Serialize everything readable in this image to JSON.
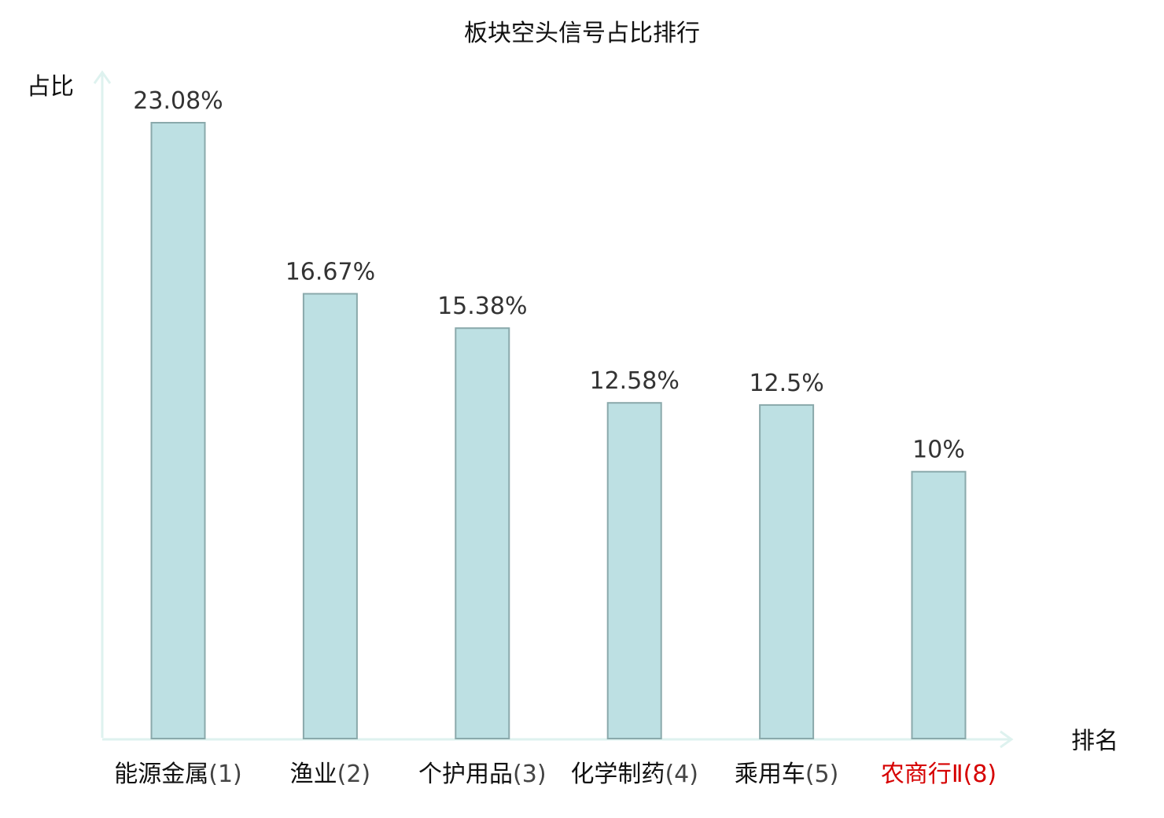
{
  "chart_data": {
    "type": "bar",
    "title": "板块空头信号占比排行",
    "xlabel": "排名",
    "ylabel": "占比",
    "categories": [
      {
        "name": "能源金属",
        "rank": "(1)",
        "highlight": false
      },
      {
        "name": "渔业",
        "rank": "(2)",
        "highlight": false
      },
      {
        "name": "个护用品",
        "rank": "(3)",
        "highlight": false
      },
      {
        "name": "化学制药",
        "rank": "(4)",
        "highlight": false
      },
      {
        "name": "乘用车",
        "rank": "(5)",
        "highlight": false
      },
      {
        "name": "农商行Ⅱ",
        "rank": "(8)",
        "highlight": true
      }
    ],
    "values": [
      23.08,
      16.67,
      15.38,
      12.58,
      12.5,
      10
    ],
    "value_labels": [
      "23.08%",
      "16.67%",
      "15.38%",
      "12.58%",
      "12.5%",
      "10%"
    ],
    "ylim": [
      0,
      23.08
    ],
    "grid": false,
    "legend": "none"
  },
  "colors": {
    "bar_fill": "#bde0e3",
    "bar_stroke": "#8aa9ab",
    "axis": "#def2ef",
    "highlight_text": "#d60000",
    "normal_text": "#111111",
    "rank_text": "#444444"
  }
}
